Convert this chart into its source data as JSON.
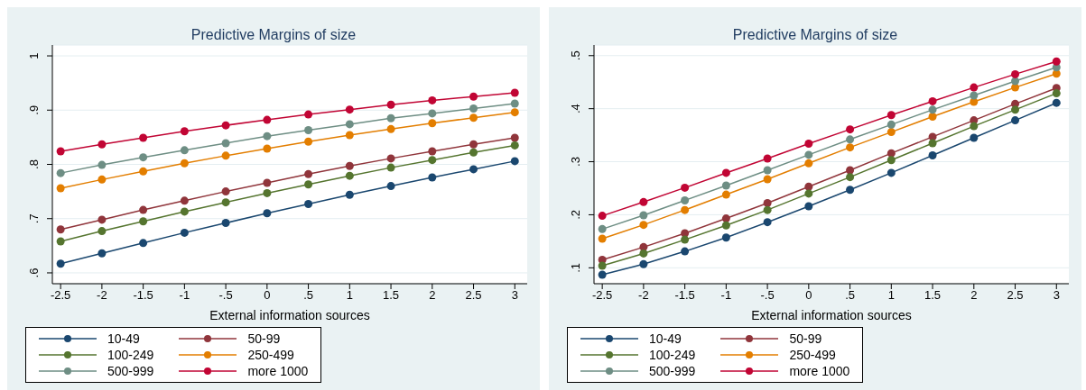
{
  "chart_data": [
    {
      "type": "line",
      "title": "Predictive Margins of size",
      "xlabel": "External information sources",
      "x": [
        -2.5,
        -2,
        -1.5,
        -1,
        -0.5,
        0,
        0.5,
        1,
        1.5,
        2,
        2.5,
        3
      ],
      "xlim": [
        -2.6,
        3.15
      ],
      "xticks": [
        {
          "value": -2.5,
          "label": "-2.5"
        },
        {
          "value": -2,
          "label": "-2"
        },
        {
          "value": -1.5,
          "label": "-1.5"
        },
        {
          "value": -1,
          "label": "-1"
        },
        {
          "value": -0.5,
          "label": "-.5"
        },
        {
          "value": 0,
          "label": "0"
        },
        {
          "value": 0.5,
          "label": ".5"
        },
        {
          "value": 1,
          "label": "1"
        },
        {
          "value": 1.5,
          "label": "1.5"
        },
        {
          "value": 2,
          "label": "2"
        },
        {
          "value": 2.5,
          "label": "2.5"
        },
        {
          "value": 3,
          "label": "3"
        }
      ],
      "ylim": [
        0.58,
        1.02
      ],
      "yticks": [
        {
          "value": 0.6,
          "label": ".6"
        },
        {
          "value": 0.7,
          "label": ".7"
        },
        {
          "value": 0.8,
          "label": ".8"
        },
        {
          "value": 0.9,
          "label": ".9"
        },
        {
          "value": 1,
          "label": "1"
        }
      ],
      "grid": "y",
      "legend": "bottom",
      "marker": "circle",
      "line_style": "solid",
      "series": [
        {
          "name": "10-49",
          "color": "#1a476f",
          "values": [
            0.617,
            0.636,
            0.655,
            0.674,
            0.692,
            0.71,
            0.727,
            0.744,
            0.76,
            0.776,
            0.791,
            0.806
          ]
        },
        {
          "name": "50-99",
          "color": "#90353b",
          "values": [
            0.68,
            0.698,
            0.716,
            0.733,
            0.75,
            0.766,
            0.782,
            0.797,
            0.811,
            0.824,
            0.837,
            0.849
          ]
        },
        {
          "name": "100-249",
          "color": "#55752f",
          "values": [
            0.658,
            0.677,
            0.695,
            0.713,
            0.73,
            0.747,
            0.763,
            0.779,
            0.794,
            0.808,
            0.822,
            0.835
          ]
        },
        {
          "name": "250-499",
          "color": "#e37e00",
          "values": [
            0.756,
            0.772,
            0.787,
            0.802,
            0.816,
            0.829,
            0.842,
            0.854,
            0.865,
            0.876,
            0.886,
            0.896
          ]
        },
        {
          "name": "500-999",
          "color": "#6e8e84",
          "values": [
            0.784,
            0.799,
            0.813,
            0.826,
            0.839,
            0.852,
            0.863,
            0.874,
            0.885,
            0.894,
            0.903,
            0.912
          ]
        },
        {
          "name": "more 1000",
          "color": "#c10534",
          "values": [
            0.824,
            0.837,
            0.849,
            0.861,
            0.872,
            0.882,
            0.892,
            0.901,
            0.91,
            0.918,
            0.925,
            0.932
          ]
        }
      ]
    },
    {
      "type": "line",
      "title": "Predictive Margins of size",
      "xlabel": "External information sources",
      "x": [
        -2.5,
        -2,
        -1.5,
        -1,
        -0.5,
        0,
        0.5,
        1,
        1.5,
        2,
        2.5,
        3
      ],
      "xlim": [
        -2.6,
        3.15
      ],
      "xticks": [
        {
          "value": -2.5,
          "label": "-2.5"
        },
        {
          "value": -2,
          "label": "-2"
        },
        {
          "value": -1.5,
          "label": "-1.5"
        },
        {
          "value": -1,
          "label": "-1"
        },
        {
          "value": -0.5,
          "label": "-.5"
        },
        {
          "value": 0,
          "label": "0"
        },
        {
          "value": 0.5,
          "label": ".5"
        },
        {
          "value": 1,
          "label": "1"
        },
        {
          "value": 1.5,
          "label": "1.5"
        },
        {
          "value": 2,
          "label": "2"
        },
        {
          "value": 2.5,
          "label": "2.5"
        },
        {
          "value": 3,
          "label": "3"
        }
      ],
      "ylim": [
        0.07,
        0.52
      ],
      "yticks": [
        {
          "value": 0.1,
          "label": ".1"
        },
        {
          "value": 0.2,
          "label": ".2"
        },
        {
          "value": 0.3,
          "label": ".3"
        },
        {
          "value": 0.4,
          "label": ".4"
        },
        {
          "value": 0.5,
          "label": ".5"
        }
      ],
      "grid": "y",
      "legend": "bottom",
      "marker": "circle",
      "line_style": "solid",
      "series": [
        {
          "name": "10-49",
          "color": "#1a476f",
          "values": [
            0.087,
            0.107,
            0.131,
            0.157,
            0.186,
            0.216,
            0.247,
            0.279,
            0.312,
            0.345,
            0.378,
            0.411
          ]
        },
        {
          "name": "50-99",
          "color": "#90353b",
          "values": [
            0.115,
            0.139,
            0.165,
            0.193,
            0.222,
            0.253,
            0.284,
            0.316,
            0.347,
            0.378,
            0.409,
            0.439
          ]
        },
        {
          "name": "100-249",
          "color": "#55752f",
          "values": [
            0.104,
            0.127,
            0.153,
            0.18,
            0.209,
            0.24,
            0.271,
            0.303,
            0.335,
            0.367,
            0.398,
            0.429
          ]
        },
        {
          "name": "250-499",
          "color": "#e37e00",
          "values": [
            0.155,
            0.181,
            0.209,
            0.238,
            0.267,
            0.297,
            0.327,
            0.356,
            0.385,
            0.413,
            0.44,
            0.466
          ]
        },
        {
          "name": "500-999",
          "color": "#6e8e84",
          "values": [
            0.173,
            0.199,
            0.227,
            0.255,
            0.284,
            0.313,
            0.342,
            0.37,
            0.398,
            0.425,
            0.452,
            0.478
          ]
        },
        {
          "name": "more 1000",
          "color": "#c10534",
          "values": [
            0.198,
            0.224,
            0.251,
            0.279,
            0.306,
            0.334,
            0.361,
            0.388,
            0.414,
            0.44,
            0.465,
            0.489
          ]
        }
      ]
    }
  ]
}
